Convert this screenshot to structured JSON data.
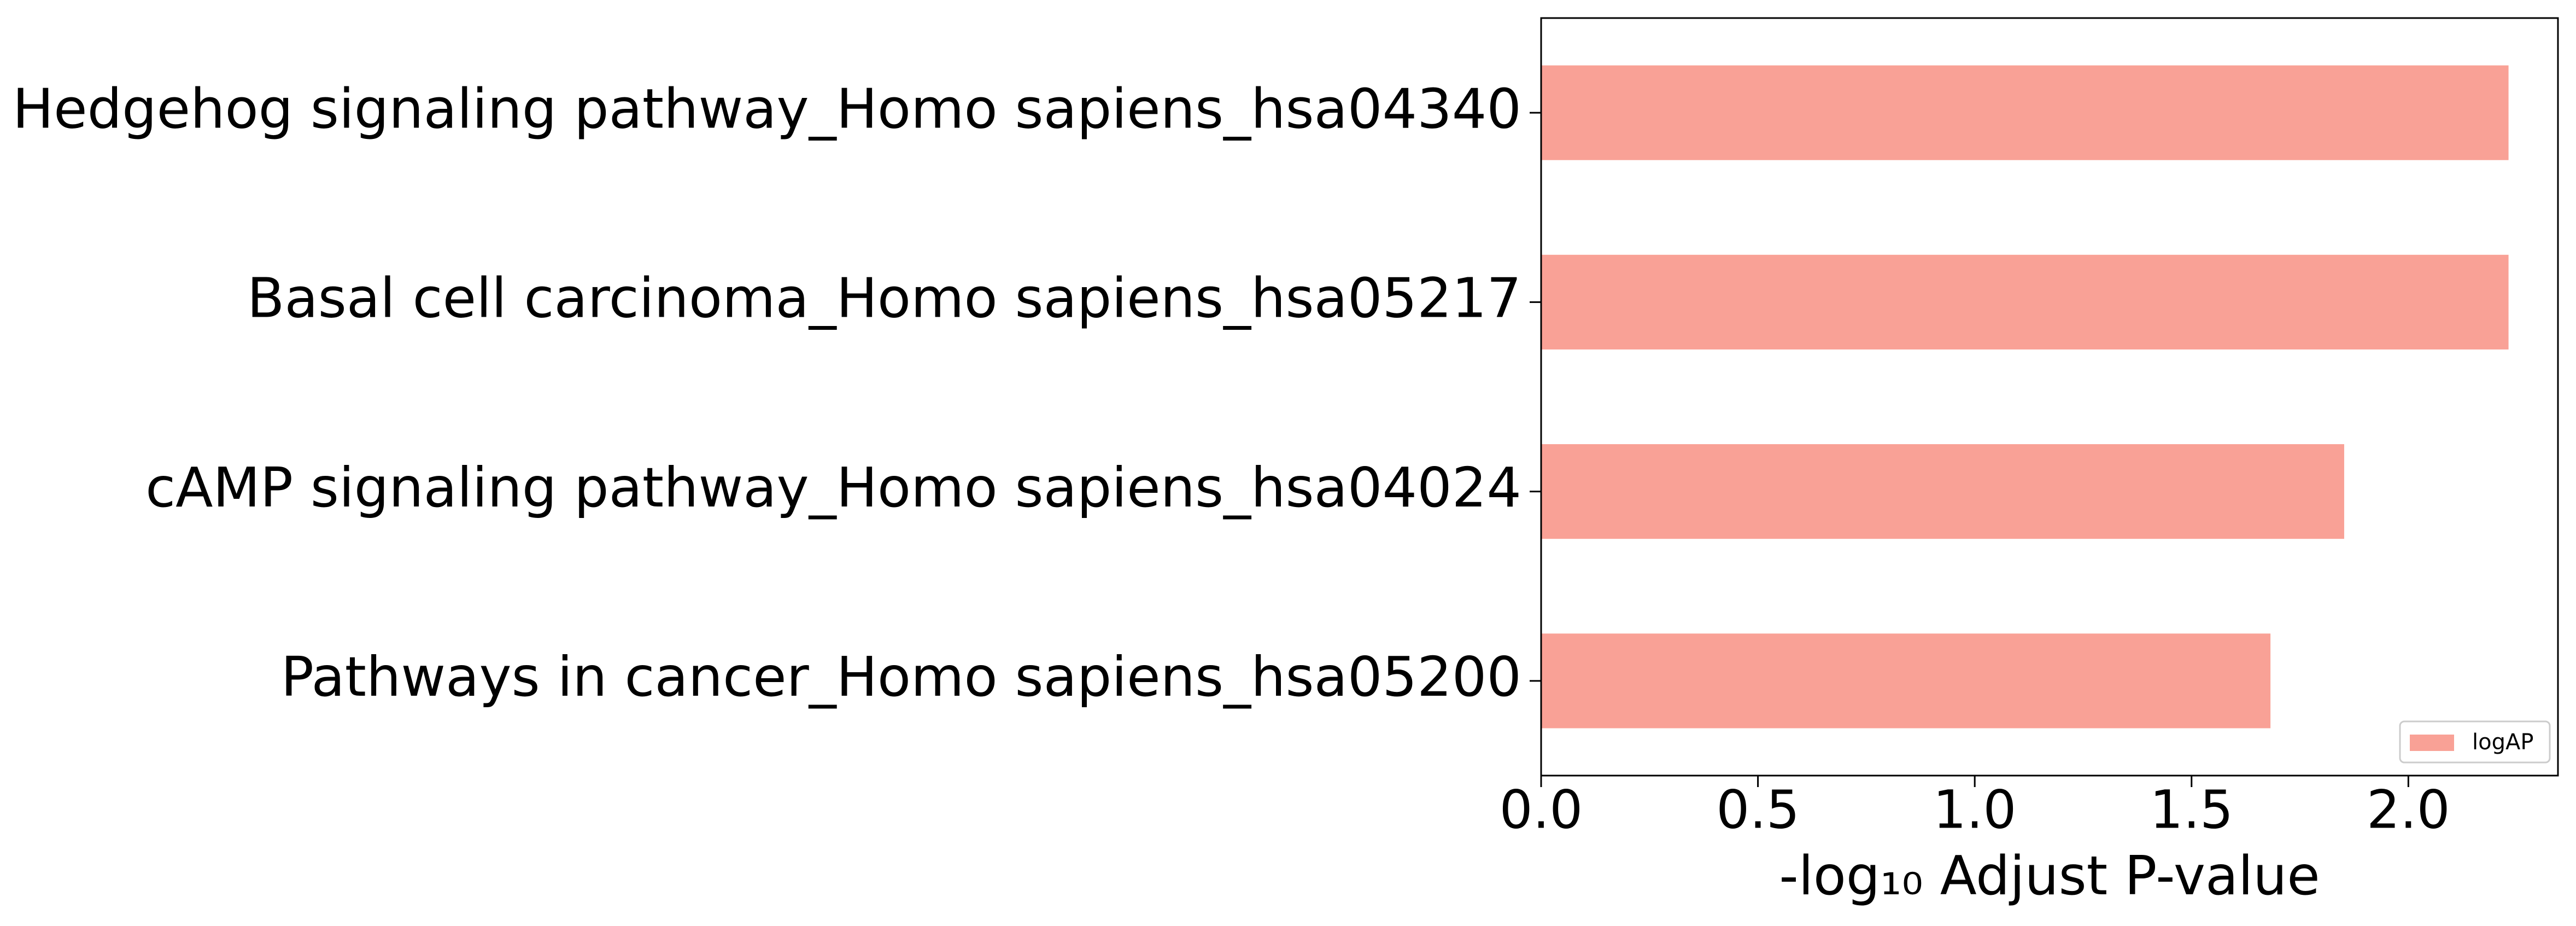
{
  "chart_data": {
    "type": "barh",
    "categories": [
      "Hedgehog signaling pathway_Homo sapiens_hsa04340",
      "Basal cell carcinoma_Homo sapiens_hsa05217",
      "cAMP signaling pathway_Homo sapiens_hsa04024",
      "Pathways in cancer_Homo sapiens_hsa05200"
    ],
    "series": [
      {
        "name": "logAP",
        "color": "#f9a196",
        "values": [
          2.231,
          2.231,
          1.852,
          1.682
        ]
      }
    ],
    "xlabel": "-log₁₀ Adjust P-value",
    "xlim": [
      0,
      2.345
    ],
    "xticks": [
      {
        "value": 0,
        "label": "0.0"
      },
      {
        "value": 0.5,
        "label": "0.5"
      },
      {
        "value": 1,
        "label": "1.0"
      },
      {
        "value": 1.5,
        "label": "1.5"
      },
      {
        "value": 2,
        "label": "2.0"
      }
    ],
    "legend": "lower right"
  }
}
